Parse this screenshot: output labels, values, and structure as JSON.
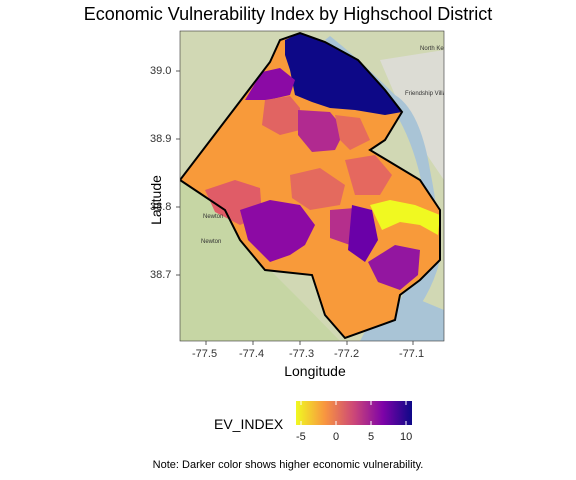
{
  "title": "Economic Vulnerability Index by Highschool District",
  "x_axis": {
    "label": "Longitude",
    "ticks": [
      "-77.5",
      "-77.4",
      "-77.3",
      "-77.2",
      "-77.1"
    ]
  },
  "y_axis": {
    "label": "Latitude",
    "ticks": [
      "39.0",
      "38.9",
      "38.8",
      "38.7"
    ]
  },
  "legend": {
    "title": "EV_INDEX",
    "ticks": [
      "-5",
      "0",
      "5",
      "10"
    ],
    "colors": [
      "#f0f921",
      "#f89540",
      "#cc4778",
      "#7e03a8",
      "#0d0887"
    ]
  },
  "map_labels": [
    "North Kensington",
    "Friendship Village",
    "Newton",
    "Newton"
  ],
  "note": "Note: Darker color shows higher economic vulnerability."
}
